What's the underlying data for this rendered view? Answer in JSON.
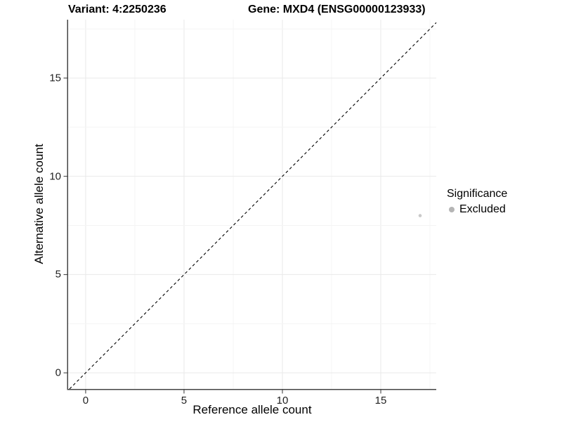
{
  "chart_data": {
    "type": "scatter",
    "titles": {
      "variant": "Variant: 4:2250236",
      "gene": "Gene: MXD4 (ENSG00000123933)"
    },
    "xlabel": "Reference allele count",
    "ylabel": "Alternative allele count",
    "xlim": [
      -0.89,
      17.82
    ],
    "ylim": [
      -0.82,
      17.97
    ],
    "x_ticks": [
      0,
      5,
      10,
      15
    ],
    "y_ticks": [
      0,
      5,
      10,
      15
    ],
    "minor_grid_step": 2.5,
    "grid": true,
    "points": [
      {
        "x": 17,
        "y": 8,
        "significance": "Excluded"
      }
    ],
    "reference_line": {
      "kind": "identity",
      "style": "dashed",
      "color": "#000000"
    },
    "legend": {
      "title": "Significance",
      "position": "right",
      "entries": [
        {
          "label": "Excluded",
          "color": "#b5b5b5"
        }
      ]
    },
    "colors": {
      "point": "#c9c9c9",
      "grid_major": "#e9e9e9",
      "grid_minor": "#f4f4f4",
      "axis_line": "#454545",
      "tick_mark": "#333333"
    }
  }
}
